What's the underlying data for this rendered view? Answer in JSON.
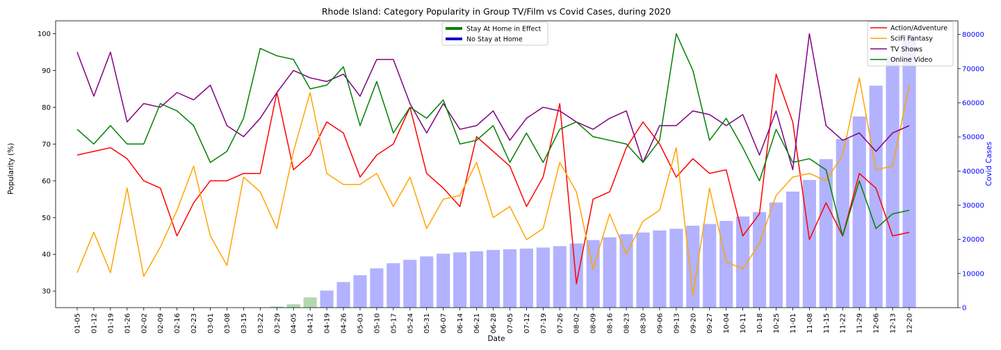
{
  "chart_data": {
    "type": "line",
    "title": "Rhode Island: Category Popularity in Group TV/Film vs Covid Cases, during 2020",
    "xlabel": "Date",
    "ylabel": "Popularity (%)",
    "y2label": "Covid Cases",
    "ylim": [
      25.5,
      103.5
    ],
    "y2lim": [
      0,
      84000
    ],
    "yticks": [
      30,
      40,
      50,
      60,
      70,
      80,
      90,
      100
    ],
    "y2ticks": [
      0,
      10000,
      20000,
      30000,
      40000,
      50000,
      60000,
      70000,
      80000
    ],
    "categories": [
      "01-05",
      "01-12",
      "01-19",
      "01-26",
      "02-02",
      "02-09",
      "02-16",
      "02-23",
      "03-01",
      "03-08",
      "03-15",
      "03-22",
      "03-29",
      "04-05",
      "04-12",
      "04-19",
      "04-26",
      "05-03",
      "05-10",
      "05-17",
      "05-24",
      "05-31",
      "06-07",
      "06-14",
      "06-21",
      "06-28",
      "07-05",
      "07-12",
      "07-19",
      "07-26",
      "08-02",
      "08-09",
      "08-16",
      "08-23",
      "08-30",
      "09-06",
      "09-13",
      "09-20",
      "09-27",
      "10-04",
      "10-11",
      "10-18",
      "10-25",
      "11-01",
      "11-08",
      "11-15",
      "11-22",
      "11-29",
      "12-06",
      "12-13",
      "12-20"
    ],
    "series": [
      {
        "name": "Action/Adventure",
        "color": "#ff0000",
        "values": [
          67,
          68,
          69,
          66,
          60,
          58,
          45,
          54,
          60,
          60,
          62,
          62,
          84,
          63,
          67,
          76,
          73,
          61,
          67,
          70,
          80,
          62,
          58,
          53,
          72,
          68,
          64,
          53,
          61,
          81,
          32,
          55,
          57,
          69,
          76,
          70,
          61,
          66,
          62,
          63,
          45,
          51,
          89,
          76,
          44,
          54,
          45,
          62,
          58,
          45,
          46
        ]
      },
      {
        "name": "SciFi Fantasy",
        "color": "#ffa500",
        "values": [
          35,
          46,
          35,
          58,
          34,
          42,
          52,
          64,
          45,
          37,
          61,
          57,
          47,
          68,
          84,
          62,
          59,
          59,
          62,
          53,
          61,
          47,
          55,
          56,
          65,
          50,
          53,
          44,
          47,
          65,
          57,
          36,
          51,
          40,
          49,
          52,
          69,
          29,
          58,
          38,
          36,
          43,
          56,
          61,
          62,
          60,
          67,
          88,
          63,
          64,
          86
        ]
      },
      {
        "name": "TV Shows",
        "color": "#800080",
        "values": [
          95,
          83,
          95,
          76,
          81,
          80,
          84,
          82,
          86,
          75,
          72,
          77,
          84,
          90,
          88,
          87,
          89,
          83,
          93,
          93,
          81,
          73,
          81,
          74,
          75,
          79,
          71,
          77,
          80,
          79,
          76,
          74,
          77,
          79,
          65,
          75,
          75,
          79,
          78,
          75,
          78,
          67,
          79,
          63,
          100,
          75,
          71,
          73,
          68,
          73,
          75
        ]
      },
      {
        "name": "Online Video",
        "color": "#008000",
        "values": [
          74,
          70,
          75,
          70,
          70,
          81,
          79,
          75,
          65,
          68,
          77,
          96,
          94,
          93,
          85,
          86,
          91,
          75,
          87,
          73,
          80,
          77,
          82,
          70,
          71,
          75,
          65,
          73,
          65,
          74,
          76,
          72,
          71,
          70,
          65,
          71,
          100,
          90,
          71,
          77,
          69,
          60,
          74,
          65,
          66,
          63,
          45,
          60,
          47,
          51,
          52
        ]
      }
    ],
    "covid_cases": {
      "values": [
        0,
        0,
        0,
        0,
        0,
        0,
        0,
        0,
        0,
        0,
        0,
        0,
        300,
        1000,
        3000,
        5000,
        7500,
        9500,
        11500,
        13000,
        14000,
        15000,
        15800,
        16200,
        16500,
        16900,
        17100,
        17300,
        17600,
        18000,
        18800,
        19800,
        20600,
        21500,
        22000,
        22600,
        23100,
        24000,
        24500,
        25400,
        26700,
        28000,
        30800,
        34000,
        37400,
        43500,
        49400,
        56000,
        65000,
        73500,
        80000
      ],
      "stay_at_home": [
        false,
        false,
        false,
        false,
        false,
        false,
        false,
        false,
        false,
        false,
        false,
        false,
        true,
        true,
        true,
        false,
        false,
        false,
        false,
        false,
        false,
        false,
        false,
        false,
        false,
        false,
        false,
        false,
        false,
        false,
        false,
        false,
        false,
        false,
        false,
        false,
        false,
        false,
        false,
        false,
        false,
        false,
        false,
        false,
        false,
        false,
        false,
        false,
        false,
        false,
        false
      ]
    },
    "legend_center": [
      {
        "label": "Stay At Home in Effect",
        "color": "#008000"
      },
      {
        "label": "No Stay at Home",
        "color": "#0000cc"
      }
    ],
    "legend_placement": "top-right",
    "grid": false
  }
}
